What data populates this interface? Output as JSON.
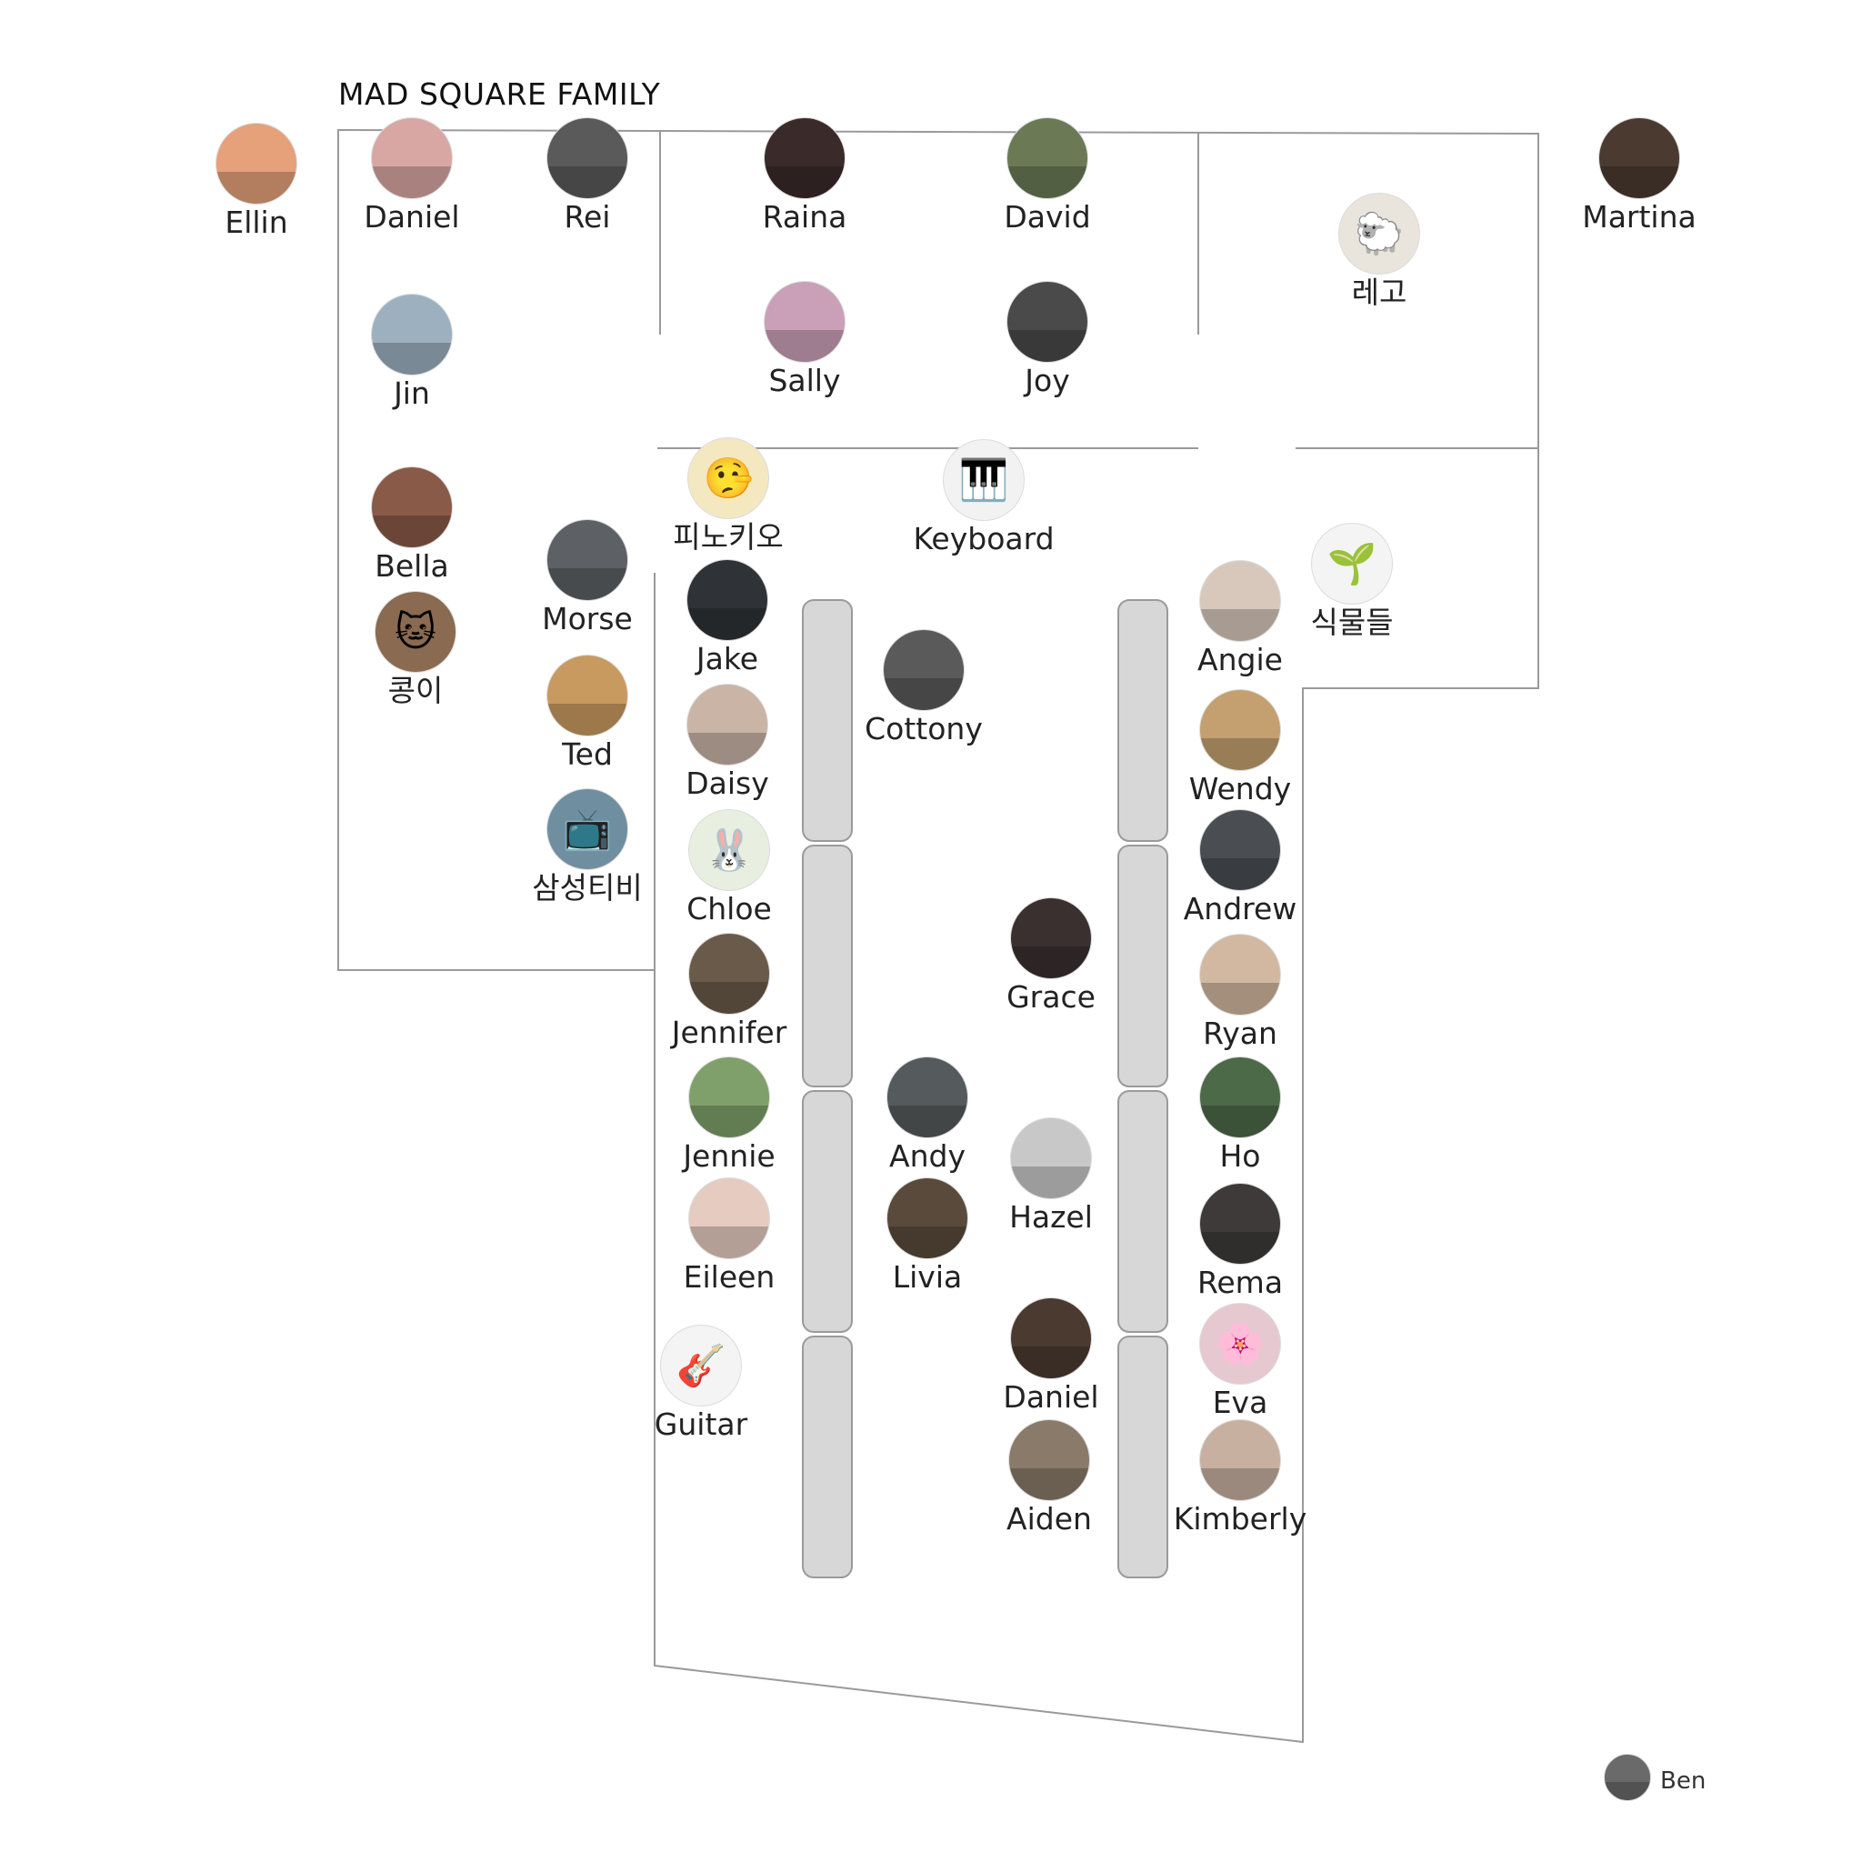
{
  "title": "MAD SQUARE FAMILY",
  "people": [
    {
      "id": "ellin",
      "name": "Ellin",
      "icon": "",
      "color": "#e6a07a"
    },
    {
      "id": "daniel-1",
      "name": "Daniel",
      "icon": "",
      "color": "#d9a7a3"
    },
    {
      "id": "rei",
      "name": "Rei",
      "icon": "",
      "color": "#5a5a5a"
    },
    {
      "id": "raina",
      "name": "Raina",
      "icon": "",
      "color": "#3a2a2a"
    },
    {
      "id": "david",
      "name": "David",
      "icon": "",
      "color": "#6b7a55"
    },
    {
      "id": "lego",
      "name": "레고",
      "icon": "🐑",
      "color": "#e9e4dc"
    },
    {
      "id": "martina",
      "name": "Martina",
      "icon": "",
      "color": "#4a3a30"
    },
    {
      "id": "jin",
      "name": "Jin",
      "icon": "",
      "color": "#9cb0c0"
    },
    {
      "id": "sally",
      "name": "Sally",
      "icon": "",
      "color": "#c9a0b8"
    },
    {
      "id": "joy",
      "name": "Joy",
      "icon": "",
      "color": "#4a4a4a"
    },
    {
      "id": "bella",
      "name": "Bella",
      "icon": "",
      "color": "#8a5a48"
    },
    {
      "id": "pinocchio",
      "name": "피노키오",
      "icon": "🤥",
      "color": "#f4e8c0"
    },
    {
      "id": "keyboard",
      "name": "Keyboard",
      "icon": "🎹",
      "color": "#f2f2f2"
    },
    {
      "id": "plants",
      "name": "식물들",
      "icon": "🌱",
      "color": "#f4f4f4"
    },
    {
      "id": "morse",
      "name": "Morse",
      "icon": "",
      "color": "#5d6065"
    },
    {
      "id": "jake",
      "name": "Jake",
      "icon": "",
      "color": "#2f3236"
    },
    {
      "id": "angie",
      "name": "Angie",
      "icon": "",
      "color": "#d8c8bc"
    },
    {
      "id": "cat",
      "name": "콩이",
      "icon": "🐱",
      "color": "#8a6a50"
    },
    {
      "id": "cottony",
      "name": "Cottony",
      "icon": "",
      "color": "#5a5a5a"
    },
    {
      "id": "ted",
      "name": "Ted",
      "icon": "",
      "color": "#c89a60"
    },
    {
      "id": "daisy",
      "name": "Daisy",
      "icon": "",
      "color": "#c9b4a6"
    },
    {
      "id": "wendy",
      "name": "Wendy",
      "icon": "",
      "color": "#c4a070"
    },
    {
      "id": "tv",
      "name": "삼성티비",
      "icon": "📺",
      "color": "#6f8fa0"
    },
    {
      "id": "chloe",
      "name": "Chloe",
      "icon": "🐰",
      "color": "#e8eee0"
    },
    {
      "id": "andrew",
      "name": "Andrew",
      "icon": "",
      "color": "#4a4e52"
    },
    {
      "id": "grace",
      "name": "Grace",
      "icon": "",
      "color": "#3a3030"
    },
    {
      "id": "jennifer",
      "name": "Jennifer",
      "icon": "",
      "color": "#6a5a4a"
    },
    {
      "id": "ryan",
      "name": "Ryan",
      "icon": "",
      "color": "#d2b8a0"
    },
    {
      "id": "jennie",
      "name": "Jennie",
      "icon": "",
      "color": "#7fa06a"
    },
    {
      "id": "andy",
      "name": "Andy",
      "icon": "",
      "color": "#555a5c"
    },
    {
      "id": "ho",
      "name": "Ho",
      "icon": "",
      "color": "#4c6a48"
    },
    {
      "id": "hazel",
      "name": "Hazel",
      "icon": "",
      "color": "#c8c8c8"
    },
    {
      "id": "eileen",
      "name": "Eileen",
      "icon": "",
      "color": "#e6ccc0"
    },
    {
      "id": "livia",
      "name": "Livia",
      "icon": "",
      "color": "#5a4a3c"
    },
    {
      "id": "rema",
      "name": "Rema",
      "icon": "",
      "color": "#3e3a3a"
    },
    {
      "id": "guitar",
      "name": "Guitar",
      "icon": "🎸",
      "color": "#f4f4f4"
    },
    {
      "id": "daniel-2",
      "name": "Daniel",
      "icon": "",
      "color": "#4a3a30"
    },
    {
      "id": "eva",
      "name": "Eva",
      "icon": "🌸",
      "color": "#e6c8d0"
    },
    {
      "id": "aiden",
      "name": "Aiden",
      "icon": "",
      "color": "#8a7a6a"
    },
    {
      "id": "kimberly",
      "name": "Kimberly",
      "icon": "",
      "color": "#c8b0a0"
    },
    {
      "id": "ben",
      "name": "Ben",
      "icon": "",
      "color": "#6a6a6a"
    }
  ]
}
